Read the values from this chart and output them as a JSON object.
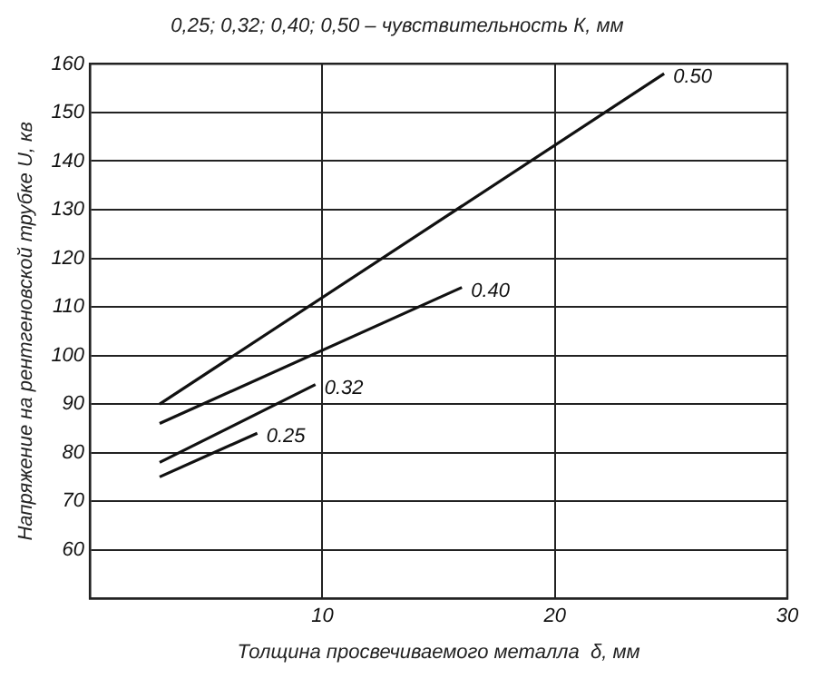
{
  "chart_data": {
    "type": "line",
    "title": "0,25; 0,32; 0,40; 0,50 – чувствительность К, мм",
    "xlabel": "Толщина просвечиваемого металла  δ, мм",
    "ylabel": "Напряжение на рентгеновской трубке U, кв",
    "xlim": [
      0,
      30
    ],
    "xticks": [
      10,
      20,
      30
    ],
    "ylim": [
      50,
      160
    ],
    "yticks": [
      60,
      70,
      80,
      90,
      100,
      110,
      120,
      130,
      140,
      150,
      160
    ],
    "grid": true,
    "legend": false,
    "marker": "none",
    "line_style": "solid",
    "series": [
      {
        "name": "0.50",
        "color": "#111111",
        "x": [
          3,
          24.7
        ],
        "values": [
          90,
          158
        ]
      },
      {
        "name": "0.40",
        "color": "#111111",
        "x": [
          3,
          16
        ],
        "values": [
          86,
          114
        ]
      },
      {
        "name": "0.32",
        "color": "#111111",
        "x": [
          3,
          9.7
        ],
        "values": [
          78,
          94
        ]
      },
      {
        "name": "0.25",
        "color": "#111111",
        "x": [
          3,
          7.2
        ],
        "values": [
          75,
          84
        ]
      }
    ]
  }
}
